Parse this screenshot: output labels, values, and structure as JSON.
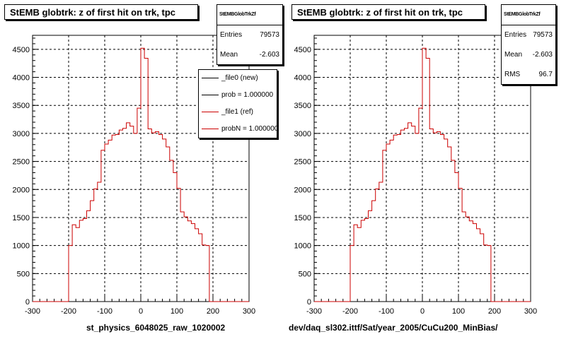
{
  "chart_data": [
    {
      "type": "bar",
      "style": "step-histogram",
      "title": "StEMB globtrk: z of first hit on trk, tpc",
      "xlabel": "st_physics_6048025_raw_1020002",
      "ylabel": "",
      "xlim": [
        -300,
        300
      ],
      "ylim": [
        0,
        4750
      ],
      "x_ticks": [
        "-300",
        "-200",
        "-100",
        "0",
        "100",
        "200",
        "300"
      ],
      "y_ticks": [
        "0",
        "500",
        "1000",
        "1500",
        "2000",
        "2500",
        "3000",
        "3500",
        "4000",
        "4500"
      ],
      "grid": true,
      "bin_width": 10,
      "x": [
        -200,
        -190,
        -180,
        -170,
        -160,
        -150,
        -140,
        -130,
        -120,
        -110,
        -100,
        -90,
        -80,
        -70,
        -60,
        -50,
        -40,
        -30,
        -20,
        -10,
        0,
        10,
        20,
        30,
        40,
        50,
        60,
        70,
        80,
        90,
        100,
        110,
        120,
        130,
        140,
        150,
        160,
        170,
        180,
        190,
        200
      ],
      "values": [
        1000,
        1370,
        1320,
        1450,
        1480,
        1620,
        1800,
        2010,
        2130,
        2700,
        2810,
        2880,
        2970,
        2980,
        3060,
        3090,
        3190,
        3130,
        3000,
        3450,
        4520,
        4340,
        3080,
        3010,
        3030,
        2980,
        2900,
        2760,
        2520,
        2300,
        2020,
        1600,
        1510,
        1440,
        1390,
        1300,
        1210,
        1010,
        1000,
        0,
        0
      ],
      "series_color": "#cc0000",
      "stats": {
        "name": "StEMBGlobTrkZf",
        "entries_label": "Entries",
        "entries": "79573",
        "mean_label": "Mean",
        "mean": "-2.603"
      },
      "legend": {
        "placement": "top-right",
        "entries": [
          {
            "label": "_file0 (new)",
            "color": "#000000"
          },
          {
            "label": "prob = 1.000000",
            "color": "#000000"
          },
          {
            "label": "_file1 (ref)",
            "color": "#cc0000"
          },
          {
            "label": "probN = 1.000000",
            "color": "#cc0000"
          }
        ]
      }
    },
    {
      "type": "bar",
      "style": "step-histogram",
      "title": "StEMB globtrk: z of first hit on trk, tpc",
      "xlabel": "dev/daq_sl302.ittf/Sat/year_2005/CuCu200_MinBias/",
      "ylabel": "",
      "xlim": [
        -300,
        300
      ],
      "ylim": [
        0,
        4750
      ],
      "x_ticks": [
        "-300",
        "-200",
        "-100",
        "0",
        "100",
        "200",
        "300"
      ],
      "y_ticks": [
        "0",
        "500",
        "1000",
        "1500",
        "2000",
        "2500",
        "3000",
        "3500",
        "4000",
        "4500"
      ],
      "grid": true,
      "bin_width": 10,
      "x": [
        -200,
        -190,
        -180,
        -170,
        -160,
        -150,
        -140,
        -130,
        -120,
        -110,
        -100,
        -90,
        -80,
        -70,
        -60,
        -50,
        -40,
        -30,
        -20,
        -10,
        0,
        10,
        20,
        30,
        40,
        50,
        60,
        70,
        80,
        90,
        100,
        110,
        120,
        130,
        140,
        150,
        160,
        170,
        180,
        190,
        200
      ],
      "values": [
        1000,
        1370,
        1320,
        1450,
        1480,
        1620,
        1800,
        2010,
        2130,
        2700,
        2810,
        2880,
        2970,
        2980,
        3060,
        3090,
        3190,
        3130,
        3000,
        3450,
        4520,
        4340,
        3080,
        3010,
        3030,
        2980,
        2900,
        2760,
        2520,
        2300,
        2020,
        1600,
        1510,
        1440,
        1390,
        1300,
        1210,
        1010,
        1000,
        0,
        0
      ],
      "series_color": "#cc0000",
      "stats": {
        "name": "StEMBGlobTrkZf",
        "entries_label": "Entries",
        "entries": "79573",
        "mean_label": "Mean",
        "mean": "-2.603",
        "rms_label": "RMS",
        "rms": "96.7"
      }
    }
  ]
}
